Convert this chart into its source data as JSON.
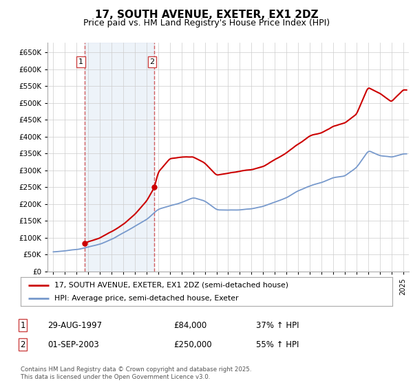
{
  "title": "17, SOUTH AVENUE, EXETER, EX1 2DZ",
  "subtitle": "Price paid vs. HM Land Registry's House Price Index (HPI)",
  "legend_line1": "17, SOUTH AVENUE, EXETER, EX1 2DZ (semi-detached house)",
  "legend_line2": "HPI: Average price, semi-detached house, Exeter",
  "sale1_date": "29-AUG-1997",
  "sale1_price": "£84,000",
  "sale1_hpi": "37% ↑ HPI",
  "sale2_date": "01-SEP-2003",
  "sale2_price": "£250,000",
  "sale2_hpi": "55% ↑ HPI",
  "footnote": "Contains HM Land Registry data © Crown copyright and database right 2025.\nThis data is licensed under the Open Government Licence v3.0.",
  "sale1_year": 1997.66,
  "sale1_value": 84000,
  "sale2_year": 2003.67,
  "sale2_value": 250000,
  "line_color_red": "#cc0000",
  "line_color_blue": "#7799cc",
  "background_plot": "#f8f8f8",
  "background_shade": "#dde8f5",
  "grid_color": "#cccccc",
  "ylim_min": 0,
  "ylim_max": 680000,
  "xlim_min": 1994.5,
  "xlim_max": 2025.5
}
